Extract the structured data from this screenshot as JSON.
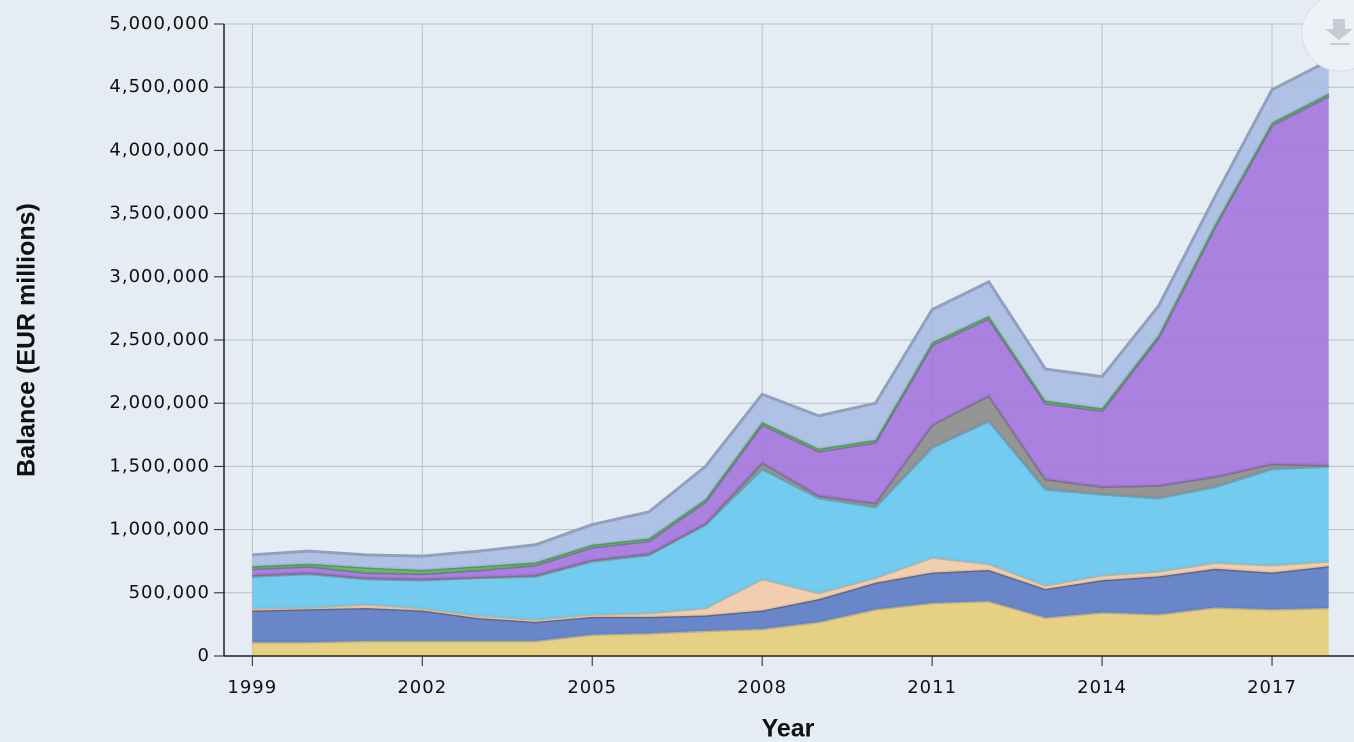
{
  "chart_data": {
    "type": "stacked_area",
    "x_label": "Year",
    "y_label": "Balance (EUR millions)",
    "x": [
      1999,
      2000,
      2001,
      2002,
      2003,
      2004,
      2005,
      2006,
      2007,
      2008,
      2009,
      2010,
      2011,
      2012,
      2013,
      2014,
      2015,
      2016,
      2017,
      2018
    ],
    "series": [
      {
        "color": "#e6cd78",
        "values": [
          110000,
          110000,
          120000,
          120000,
          120000,
          120000,
          170000,
          180000,
          200000,
          215000,
          270000,
          370000,
          420000,
          435000,
          305000,
          345000,
          330000,
          385000,
          370000,
          380000
        ]
      },
      {
        "color": "#5b7bc4",
        "values": [
          250000,
          260000,
          260000,
          240000,
          180000,
          150000,
          140000,
          130000,
          120000,
          145000,
          180000,
          210000,
          240000,
          245000,
          225000,
          255000,
          300000,
          305000,
          290000,
          330000
        ]
      },
      {
        "color": "#f2cba8",
        "values": [
          20000,
          15000,
          30000,
          20000,
          20000,
          20000,
          20000,
          30000,
          60000,
          250000,
          50000,
          40000,
          120000,
          50000,
          30000,
          40000,
          40000,
          50000,
          60000,
          40000
        ]
      },
      {
        "color": "#66c9ee",
        "values": [
          250000,
          265000,
          200000,
          220000,
          300000,
          340000,
          420000,
          460000,
          660000,
          870000,
          750000,
          560000,
          870000,
          1130000,
          760000,
          640000,
          580000,
          600000,
          760000,
          750000
        ]
      },
      {
        "color": "#8c8c8c",
        "values": [
          10000,
          10000,
          10000,
          10000,
          5000,
          10000,
          10000,
          10000,
          10000,
          50000,
          20000,
          30000,
          180000,
          200000,
          80000,
          60000,
          100000,
          80000,
          40000,
          10000
        ]
      },
      {
        "color": "#a375dc",
        "values": [
          50000,
          50000,
          40000,
          40000,
          55000,
          80000,
          100000,
          100000,
          170000,
          300000,
          350000,
          480000,
          630000,
          610000,
          600000,
          600000,
          1170000,
          1980000,
          2680000,
          2920000
        ]
      },
      {
        "color": "#5cb85c",
        "values": [
          20000,
          20000,
          40000,
          30000,
          30000,
          20000,
          20000,
          20000,
          20000,
          20000,
          20000,
          20000,
          20000,
          20000,
          20000,
          20000,
          20000,
          20000,
          20000,
          20000
        ]
      },
      {
        "color": "#a9bde2",
        "values": [
          90000,
          100000,
          100000,
          110000,
          120000,
          140000,
          160000,
          210000,
          260000,
          220000,
          260000,
          290000,
          260000,
          270000,
          250000,
          250000,
          230000,
          220000,
          260000,
          260000
        ]
      }
    ],
    "xlim": [
      1998.5,
      2018.5
    ],
    "xticks": [
      1999,
      2002,
      2005,
      2008,
      2011,
      2014,
      2017
    ],
    "ylim": [
      0,
      5000000
    ],
    "yticks": [
      0,
      {
        "value": 500000,
        "label": "500,000"
      },
      {
        "value": 1000000,
        "label": "1,000,000"
      },
      {
        "value": 1500000,
        "label": "1,500,000"
      },
      {
        "value": 2000000,
        "label": "2,000,000"
      },
      {
        "value": 2500000,
        "label": "2,500,000"
      },
      {
        "value": 3000000,
        "label": "3,000,000"
      },
      {
        "value": 3500000,
        "label": "3,500,000"
      },
      {
        "value": 4000000,
        "label": "4,000,000"
      },
      {
        "value": 4500000,
        "label": "4,500,000"
      },
      {
        "value": 5000000,
        "label": "5,000,000"
      }
    ],
    "grid": true
  }
}
